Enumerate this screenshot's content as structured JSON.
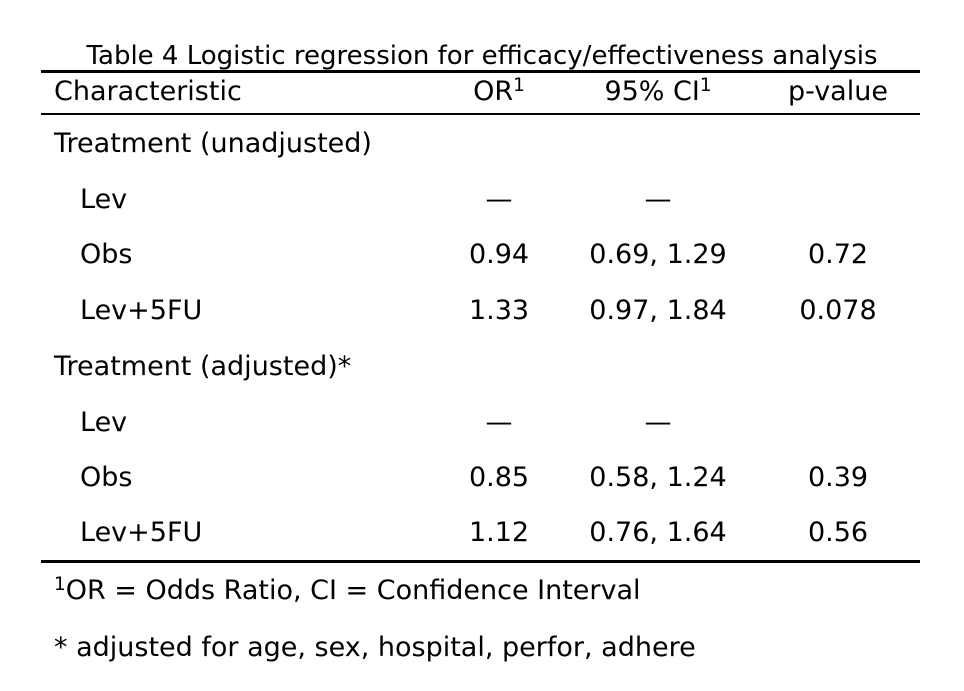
{
  "table": {
    "caption": "Table 4 Logistic regression for efficacy/effectiveness analysis",
    "headers": {
      "characteristic": "Characteristic",
      "or": "OR",
      "or_sup": "1",
      "ci": "95% CI",
      "ci_sup": "1",
      "pvalue": "p-value"
    },
    "groups": [
      {
        "label": "Treatment (unadjusted)",
        "rows": [
          {
            "label": "Lev",
            "or": "—",
            "ci": "—",
            "p": ""
          },
          {
            "label": "Obs",
            "or": "0.94",
            "ci": "0.69, 1.29",
            "p": "0.72"
          },
          {
            "label": "Lev+5FU",
            "or": "1.33",
            "ci": "0.97, 1.84",
            "p": "0.078"
          }
        ]
      },
      {
        "label": "Treatment (adjusted)*",
        "rows": [
          {
            "label": "Lev",
            "or": "—",
            "ci": "—",
            "p": ""
          },
          {
            "label": "Obs",
            "or": "0.85",
            "ci": "0.58, 1.24",
            "p": "0.39"
          },
          {
            "label": "Lev+5FU",
            "or": "1.12",
            "ci": "0.76, 1.64",
            "p": "0.56"
          }
        ]
      }
    ],
    "footnotes": {
      "note1_marker": "1",
      "note1": "OR = Odds Ratio, CI = Confidence Interval",
      "note2": "* adjusted for age, sex, hospital, perfor, adhere"
    }
  }
}
